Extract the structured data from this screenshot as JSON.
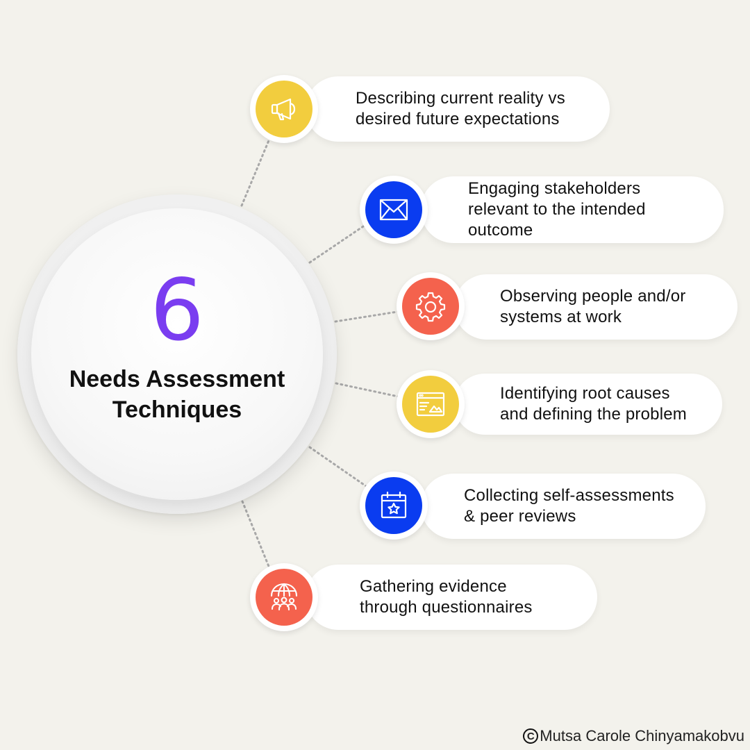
{
  "hub": {
    "number": "6",
    "title": "Needs Assessment Techniques"
  },
  "colors": {
    "accent_purple": "#7a3df0",
    "yellow": "#f2cd3e",
    "blue": "#0a3cf0",
    "coral": "#f4624d"
  },
  "items": [
    {
      "text": "Describing current reality vs\ndesired future expectations",
      "icon": "megaphone-icon",
      "color": "#f2cd3e"
    },
    {
      "text": "Engaging stakeholders\nrelevant to the intended\noutcome",
      "icon": "envelope-icon",
      "color": "#0a3cf0"
    },
    {
      "text": "Observing people and/or\nsystems at work",
      "icon": "gear-icon",
      "color": "#f4624d"
    },
    {
      "text": "Identifying root causes\nand defining the problem",
      "icon": "browser-window-icon",
      "color": "#f2cd3e"
    },
    {
      "text": "Collecting self-assessments\n& peer reviews",
      "icon": "calendar-star-icon",
      "color": "#0a3cf0"
    },
    {
      "text": "Gathering evidence\nthrough questionnaires",
      "icon": "globe-people-icon",
      "color": "#f4624d"
    }
  ],
  "footer": {
    "copyright_symbol": "C",
    "author": "Mutsa Carole Chinyamakobvu"
  }
}
